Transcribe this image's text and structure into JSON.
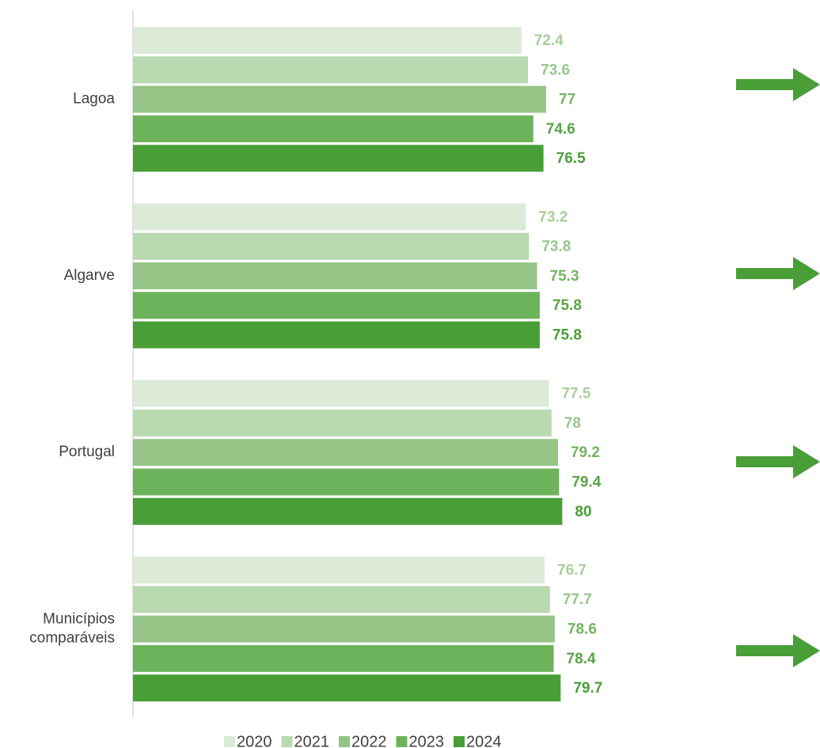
{
  "chart_data": {
    "type": "barh",
    "categories": [
      "Lagoa",
      "Algarve",
      "Portugal",
      "Municípios\ncomparáveis"
    ],
    "series": [
      {
        "name": "2020",
        "color": "#dcebd8",
        "label_color": "#a6cf9b",
        "values": [
          72.4,
          73.2,
          77.5,
          76.7
        ]
      },
      {
        "name": "2021",
        "color": "#b9d9b0",
        "label_color": "#96c688",
        "values": [
          73.6,
          73.8,
          78.0,
          77.7
        ]
      },
      {
        "name": "2022",
        "color": "#94c587",
        "label_color": "#72b462",
        "values": [
          77.0,
          75.3,
          79.2,
          78.6
        ]
      },
      {
        "name": "2023",
        "color": "#6db35c",
        "label_color": "#58a447",
        "values": [
          74.6,
          75.8,
          79.4,
          78.4
        ]
      },
      {
        "name": "2024",
        "color": "#4a9e38",
        "label_color": "#4a9e38",
        "values": [
          76.5,
          75.8,
          80.0,
          79.7
        ]
      }
    ],
    "xlim": [
      0,
      100
    ],
    "legend": "bottom"
  }
}
